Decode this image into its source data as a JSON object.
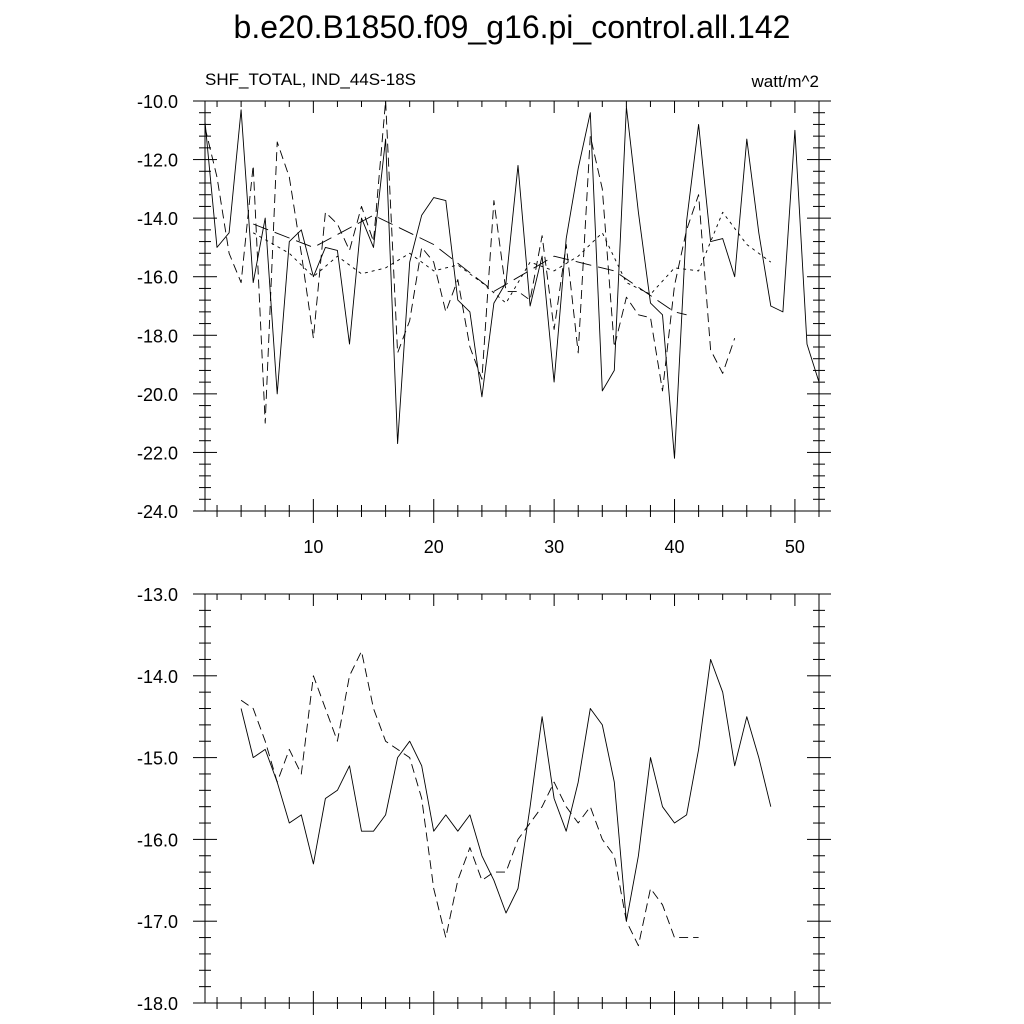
{
  "title": "b.e20.B1850.f09_g16.pi_control.all.142",
  "chart_data": [
    {
      "type": "line",
      "subtitle_left": "SHF_TOTAL, IND_44S-18S",
      "subtitle_right": "watt/m^2",
      "xlim": [
        1,
        52
      ],
      "ylim": [
        -24.0,
        -10.0
      ],
      "xticks": [
        10,
        20,
        30,
        40,
        50
      ],
      "yticks": [
        -24.0,
        -22.0,
        -20.0,
        -18.0,
        -16.0,
        -14.0,
        -12.0,
        -10.0
      ],
      "ytick_labels": [
        "-24.0",
        "-22.0",
        "-20.0",
        "-18.0",
        "-16.0",
        "-14.0",
        "-12.0",
        "-10.0"
      ],
      "series": [
        {
          "style": "solid",
          "x": [
            1,
            2,
            3,
            4,
            5,
            6,
            7,
            8,
            9,
            10,
            11,
            12,
            13,
            14,
            15,
            16,
            17,
            18,
            19,
            20,
            21,
            22,
            23,
            24,
            25,
            26,
            27,
            28,
            29,
            30,
            31,
            32,
            33,
            34,
            35,
            36,
            37,
            38,
            39,
            40,
            41,
            42,
            43,
            44,
            45,
            46,
            47,
            48,
            49,
            50,
            51,
            52
          ],
          "values": [
            -10.7,
            -15.0,
            -14.5,
            -10.3,
            -16.2,
            -14.0,
            -20.0,
            -14.8,
            -14.4,
            -16.0,
            -15.0,
            -15.1,
            -18.3,
            -14.0,
            -15.0,
            -11.3,
            -21.7,
            -15.5,
            -13.9,
            -13.3,
            -13.4,
            -16.8,
            -17.2,
            -20.1,
            -16.9,
            -16.2,
            -12.2,
            -17.0,
            -15.3,
            -19.6,
            -14.7,
            -12.3,
            -10.4,
            -19.9,
            -19.2,
            -10.2,
            -13.8,
            -16.9,
            -17.3,
            -22.2,
            -14.1,
            -10.8,
            -14.8,
            -14.7,
            -16.0,
            -11.3,
            -14.5,
            -17.0,
            -17.2,
            -11.0,
            -18.3,
            -19.6
          ]
        },
        {
          "style": "dashed",
          "x": [
            1,
            2,
            3,
            4,
            5,
            6,
            7,
            8,
            9,
            10,
            11,
            12,
            13,
            14,
            15,
            16,
            17,
            18,
            19,
            20,
            21,
            22,
            23,
            24,
            25,
            26,
            27,
            28,
            29,
            30,
            31,
            32,
            33,
            34,
            35,
            36,
            37,
            38,
            39,
            40,
            41,
            42,
            43,
            44,
            45
          ],
          "values": [
            -10.9,
            -12.6,
            -15.2,
            -16.2,
            -12.2,
            -21.0,
            -11.4,
            -12.6,
            -15.2,
            -18.1,
            -13.8,
            -14.2,
            -15.1,
            -13.6,
            -14.8,
            -10.0,
            -18.6,
            -17.5,
            -15.0,
            -15.5,
            -17.2,
            -16.1,
            -18.4,
            -19.5,
            -13.4,
            -16.5,
            -16.5,
            -16.8,
            -14.6,
            -17.8,
            -14.9,
            -18.6,
            -11.2,
            -13.0,
            -18.4,
            -16.7,
            -17.3,
            -17.4,
            -19.9,
            -16.3,
            -14.4,
            -13.2,
            -18.5,
            -19.3,
            -18.1
          ]
        },
        {
          "style": "long-dash",
          "x": [
            5,
            10,
            15,
            20,
            25,
            30,
            35,
            40,
            41
          ],
          "values": [
            -14.2,
            -15.0,
            -13.9,
            -14.9,
            -16.5,
            -15.3,
            -15.8,
            -17.2,
            -17.3
          ]
        },
        {
          "style": "dotted",
          "x": [
            5,
            8,
            10,
            12,
            14,
            16,
            18,
            20,
            22,
            24,
            26,
            28,
            30,
            32,
            34,
            36,
            38,
            40,
            42,
            44,
            46,
            48
          ],
          "values": [
            -14.5,
            -15.2,
            -16.0,
            -15.3,
            -15.9,
            -15.7,
            -15.2,
            -15.8,
            -15.6,
            -16.2,
            -16.9,
            -15.5,
            -15.8,
            -15.3,
            -14.5,
            -16.2,
            -16.6,
            -15.7,
            -15.8,
            -13.8,
            -14.9,
            -15.5
          ]
        }
      ]
    },
    {
      "type": "line",
      "xlim": [
        1,
        52
      ],
      "ylim": [
        -18.0,
        -13.0
      ],
      "xticks": [
        10,
        20,
        30,
        40,
        50
      ],
      "yticks": [
        -18.0,
        -17.0,
        -16.0,
        -15.0,
        -14.0,
        -13.0
      ],
      "ytick_labels": [
        "-18.0",
        "-17.0",
        "-16.0",
        "-15.0",
        "-14.0",
        "-13.0"
      ],
      "series": [
        {
          "style": "solid",
          "x": [
            4,
            5,
            6,
            7,
            8,
            9,
            10,
            11,
            12,
            13,
            14,
            15,
            16,
            17,
            18,
            19,
            20,
            21,
            22,
            23,
            24,
            25,
            26,
            27,
            28,
            29,
            30,
            31,
            32,
            33,
            34,
            35,
            36,
            37,
            38,
            39,
            40,
            41,
            42,
            43,
            44,
            45,
            46,
            47,
            48
          ],
          "values": [
            -14.4,
            -15.0,
            -14.9,
            -15.3,
            -15.8,
            -15.7,
            -16.3,
            -15.5,
            -15.4,
            -15.1,
            -15.9,
            -15.9,
            -15.7,
            -15.0,
            -14.8,
            -15.1,
            -15.9,
            -15.7,
            -15.9,
            -15.7,
            -16.2,
            -16.5,
            -16.9,
            -16.6,
            -15.6,
            -14.5,
            -15.5,
            -15.9,
            -15.3,
            -14.4,
            -14.6,
            -15.3,
            -17.0,
            -16.2,
            -15.0,
            -15.6,
            -15.8,
            -15.7,
            -14.9,
            -13.8,
            -14.2,
            -15.1,
            -14.5,
            -15.0,
            -15.6
          ]
        },
        {
          "style": "dashed",
          "x": [
            4,
            5,
            6,
            7,
            8,
            9,
            10,
            11,
            12,
            13,
            14,
            15,
            16,
            17,
            18,
            19,
            20,
            21,
            22,
            23,
            24,
            25,
            26,
            27,
            28,
            29,
            30,
            31,
            32,
            33,
            34,
            35,
            36,
            37,
            38,
            39,
            40,
            41,
            42
          ],
          "values": [
            -14.3,
            -14.4,
            -14.8,
            -15.3,
            -14.9,
            -15.2,
            -14.0,
            -14.4,
            -14.8,
            -14.0,
            -13.7,
            -14.4,
            -14.8,
            -14.9,
            -15.0,
            -15.5,
            -16.6,
            -17.2,
            -16.5,
            -16.1,
            -16.5,
            -16.4,
            -16.4,
            -16.0,
            -15.8,
            -15.6,
            -15.3,
            -15.6,
            -15.8,
            -15.6,
            -16.0,
            -16.2,
            -17.0,
            -17.3,
            -16.6,
            -16.8,
            -17.2,
            -17.2,
            -17.2
          ]
        }
      ]
    }
  ]
}
